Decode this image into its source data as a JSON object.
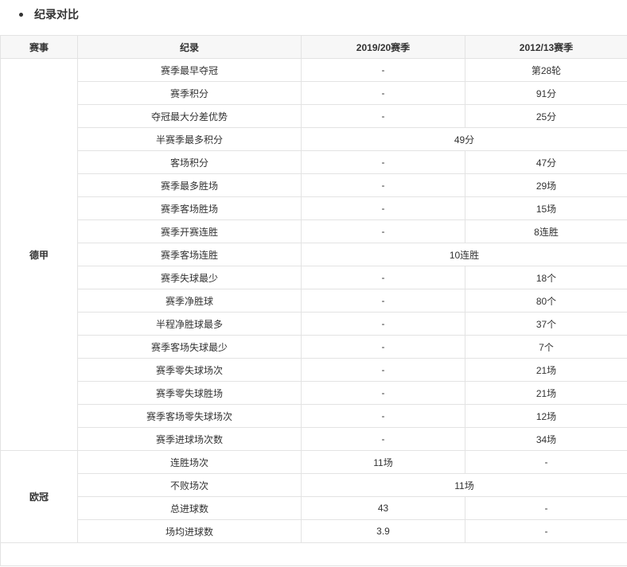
{
  "heading": "纪录对比",
  "headers": [
    "赛事",
    "纪录",
    "2019/20赛季",
    "2012/13赛季"
  ],
  "groups": [
    {
      "competition": "德甲",
      "rows": [
        {
          "record": "赛季最早夺冠",
          "a": "-",
          "b": "第28轮"
        },
        {
          "record": "赛季积分",
          "a": "-",
          "b": "91分"
        },
        {
          "record": "夺冠最大分差优势",
          "a": "-",
          "b": "25分"
        },
        {
          "record": "半赛季最多积分",
          "merged": "49分"
        },
        {
          "record": "客场积分",
          "a": "-",
          "b": "47分"
        },
        {
          "record": "赛季最多胜场",
          "a": "-",
          "b": "29场"
        },
        {
          "record": "赛季客场胜场",
          "a": "-",
          "b": "15场"
        },
        {
          "record": "赛季开赛连胜",
          "a": "-",
          "b": "8连胜"
        },
        {
          "record": "赛季客场连胜",
          "merged": "10连胜"
        },
        {
          "record": "赛季失球最少",
          "a": "-",
          "b": "18个"
        },
        {
          "record": "赛季净胜球",
          "a": "-",
          "b": "80个"
        },
        {
          "record": "半程净胜球最多",
          "a": "-",
          "b": "37个"
        },
        {
          "record": "赛季客场失球最少",
          "a": "-",
          "b": "7个"
        },
        {
          "record": "赛季零失球场次",
          "a": "-",
          "b": "21场"
        },
        {
          "record": "赛季零失球胜场",
          "a": "-",
          "b": "21场"
        },
        {
          "record": "赛季客场零失球场次",
          "a": "-",
          "b": "12场"
        },
        {
          "record": "赛季进球场次数",
          "a": "-",
          "b": "34场"
        }
      ]
    },
    {
      "competition": "欧冠",
      "rows": [
        {
          "record": "连胜场次",
          "a": "11场",
          "b": "-"
        },
        {
          "record": "不败场次",
          "merged": "11场"
        },
        {
          "record": "总进球数",
          "a": "43",
          "b": "-"
        },
        {
          "record": "场均进球数",
          "a": "3.9",
          "b": "-"
        }
      ]
    }
  ]
}
